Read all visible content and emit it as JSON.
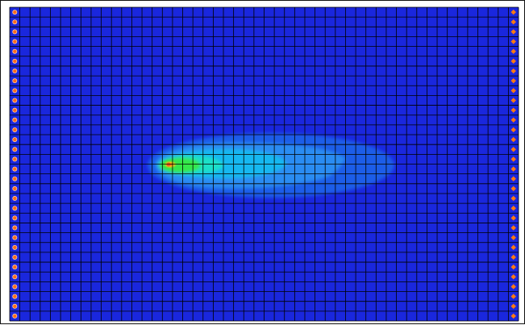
{
  "colors": {
    "background": "#1a27dd",
    "grid_line": "#000000",
    "contour_level_1": "#1f5de8",
    "contour_level_2": "#2c8cf2",
    "contour_level_3": "#19b8f0",
    "contour_level_4": "#1ee0c8",
    "contour_level_5": "#34e84a",
    "hotspot": "#e8c01a",
    "hotspot_center": "#ff5a1e",
    "left_boundary_marker": "#ff6a1a",
    "right_boundary_marker": "#ff7a10"
  },
  "icons": {
    "left_boundary_marker": "constant-head-cell-icon",
    "right_boundary_marker": "constant-head-cell-icon",
    "source": "source-well-icon"
  },
  "grid": {
    "columns": 50,
    "rows": 32
  }
}
